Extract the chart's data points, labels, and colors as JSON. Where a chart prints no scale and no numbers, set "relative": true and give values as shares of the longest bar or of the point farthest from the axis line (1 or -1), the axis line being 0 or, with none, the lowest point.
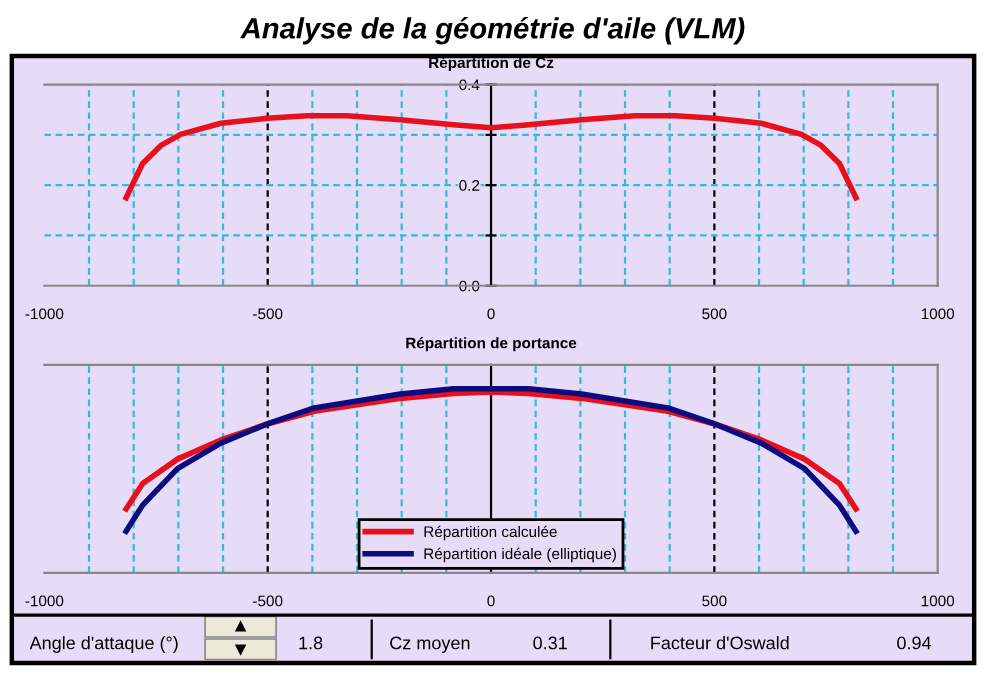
{
  "chart_data": [
    {
      "type": "line",
      "title": "Répartition de Cz",
      "x": [
        -817,
        -780,
        -739,
        -695,
        -605,
        -501,
        -412,
        -322,
        -203,
        -84,
        0,
        84,
        203,
        322,
        412,
        501,
        605,
        695,
        739,
        780,
        817
      ],
      "series": [
        {
          "color": "#e8101c",
          "values": [
            0.175,
            0.243,
            0.279,
            0.301,
            0.323,
            0.333,
            0.338,
            0.338,
            0.33,
            0.32,
            0.314,
            0.32,
            0.33,
            0.338,
            0.338,
            0.333,
            0.323,
            0.301,
            0.279,
            0.243,
            0.175
          ]
        }
      ],
      "xlim": [
        -1000,
        1000
      ],
      "xticks": [
        -1000,
        {
          "value": -900,
          "label": null
        },
        {
          "value": -800,
          "label": null
        },
        {
          "value": -700,
          "label": null
        },
        {
          "value": -600,
          "label": null
        },
        -500,
        {
          "value": -400,
          "label": null
        },
        {
          "value": -300,
          "label": null
        },
        {
          "value": -200,
          "label": null
        },
        {
          "value": -100,
          "label": null
        },
        0,
        {
          "value": 100,
          "label": null
        },
        {
          "value": 200,
          "label": null
        },
        {
          "value": 300,
          "label": null
        },
        {
          "value": 400,
          "label": null
        },
        500,
        {
          "value": 600,
          "label": null
        },
        {
          "value": 700,
          "label": null
        },
        {
          "value": 800,
          "label": null
        },
        {
          "value": 900,
          "label": null
        },
        1000
      ],
      "ylim": [
        0,
        0.4
      ],
      "yticks": [
        {
          "value": 0,
          "label": "0.0"
        },
        {
          "value": 0.1,
          "label": null
        },
        0.2,
        {
          "value": 0.3,
          "label": null
        },
        0.4
      ],
      "grid": true,
      "legend": false,
      "marker": "none",
      "line_style": "solid"
    },
    {
      "type": "line",
      "title": "Répartition de portance",
      "relative": true,
      "x": [
        -817,
        -780,
        -702,
        -605,
        -501,
        -396,
        -203,
        -84,
        0,
        84,
        203,
        396,
        501,
        605,
        702,
        780,
        817
      ],
      "series": [
        {
          "name": "Répartition calculée",
          "color": "#e8101c",
          "values": [
            0.347,
            0.486,
            0.618,
            0.722,
            0.809,
            0.878,
            0.948,
            0.975,
            0.983,
            0.975,
            0.948,
            0.878,
            0.809,
            0.722,
            0.618,
            0.486,
            0.347
          ]
        },
        {
          "name": "Répartition idéale (elliptique)",
          "color": "#0c0c80",
          "values": [
            0.226,
            0.368,
            0.566,
            0.705,
            0.809,
            0.896,
            0.972,
            1.0,
            1.0,
            1.0,
            0.972,
            0.896,
            0.809,
            0.705,
            0.566,
            0.368,
            0.226
          ]
        }
      ],
      "xlim": [
        -1000,
        1000
      ],
      "xticks": [
        -1000,
        {
          "value": -900,
          "label": null
        },
        {
          "value": -800,
          "label": null
        },
        {
          "value": -700,
          "label": null
        },
        {
          "value": -600,
          "label": null
        },
        -500,
        {
          "value": -400,
          "label": null
        },
        {
          "value": -300,
          "label": null
        },
        {
          "value": -200,
          "label": null
        },
        {
          "value": -100,
          "label": null
        },
        0,
        {
          "value": 100,
          "label": null
        },
        {
          "value": 200,
          "label": null
        },
        {
          "value": 300,
          "label": null
        },
        {
          "value": 400,
          "label": null
        },
        500,
        {
          "value": 600,
          "label": null
        },
        {
          "value": 700,
          "label": null
        },
        {
          "value": 800,
          "label": null
        },
        {
          "value": 900,
          "label": null
        },
        1000
      ],
      "grid": "x",
      "legend": "bottom",
      "marker": "none",
      "line_style": "solid"
    },
    {
      "type": "other",
      "title": "Analyse de la géométrie d'aile (VLM)",
      "annotations": [
        "Angle d'attaque (°)",
        "1.8",
        "Cz moyen",
        "0.31",
        "Facteur d'Oswald",
        "0.94"
      ]
    }
  ]
}
